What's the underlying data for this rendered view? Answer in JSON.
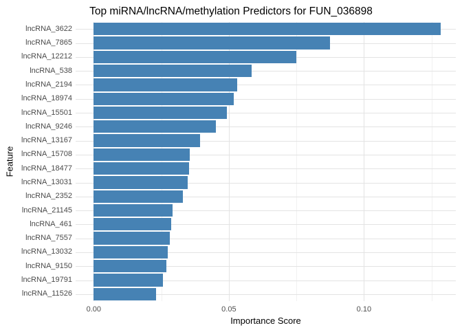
{
  "colors": {
    "bar": "#4682B4",
    "grid_major": "#e3e3e3",
    "grid_minor": "#f1f1f1",
    "tick_text": "#4d4d4d",
    "title_text": "#000000",
    "background": "#ffffff"
  },
  "chart_data": {
    "type": "bar",
    "orientation": "horizontal",
    "title": "Top miRNA/lncRNA/methylation Predictors for FUN_036898",
    "xlabel": "Importance Score",
    "ylabel": "Feature",
    "legend": false,
    "grid": true,
    "xlim": [
      -0.0067,
      0.134
    ],
    "x_ticks_major": [
      {
        "value": 0.0,
        "label": "0.00"
      },
      {
        "value": 0.05,
        "label": "0.05"
      },
      {
        "value": 0.1,
        "label": "0.10"
      }
    ],
    "x_ticks_minor": [
      0.025,
      0.075,
      0.125
    ],
    "categories": [
      "lncRNA_3622",
      "lncRNA_7865",
      "lncRNA_12212",
      "lncRNA_538",
      "lncRNA_2194",
      "lncRNA_18974",
      "lncRNA_15501",
      "lncRNA_9246",
      "lncRNA_13167",
      "lncRNA_15708",
      "lncRNA_18477",
      "lncRNA_13031",
      "lncRNA_2352",
      "lncRNA_21145",
      "lncRNA_461",
      "lncRNA_7557",
      "lncRNA_13032",
      "lncRNA_9150",
      "lncRNA_19791",
      "lncRNA_11526"
    ],
    "values": [
      0.1285,
      0.0875,
      0.075,
      0.0585,
      0.053,
      0.0518,
      0.0492,
      0.0453,
      0.0395,
      0.0355,
      0.0353,
      0.0348,
      0.0331,
      0.0291,
      0.0288,
      0.0283,
      0.0274,
      0.027,
      0.0256,
      0.023
    ]
  }
}
